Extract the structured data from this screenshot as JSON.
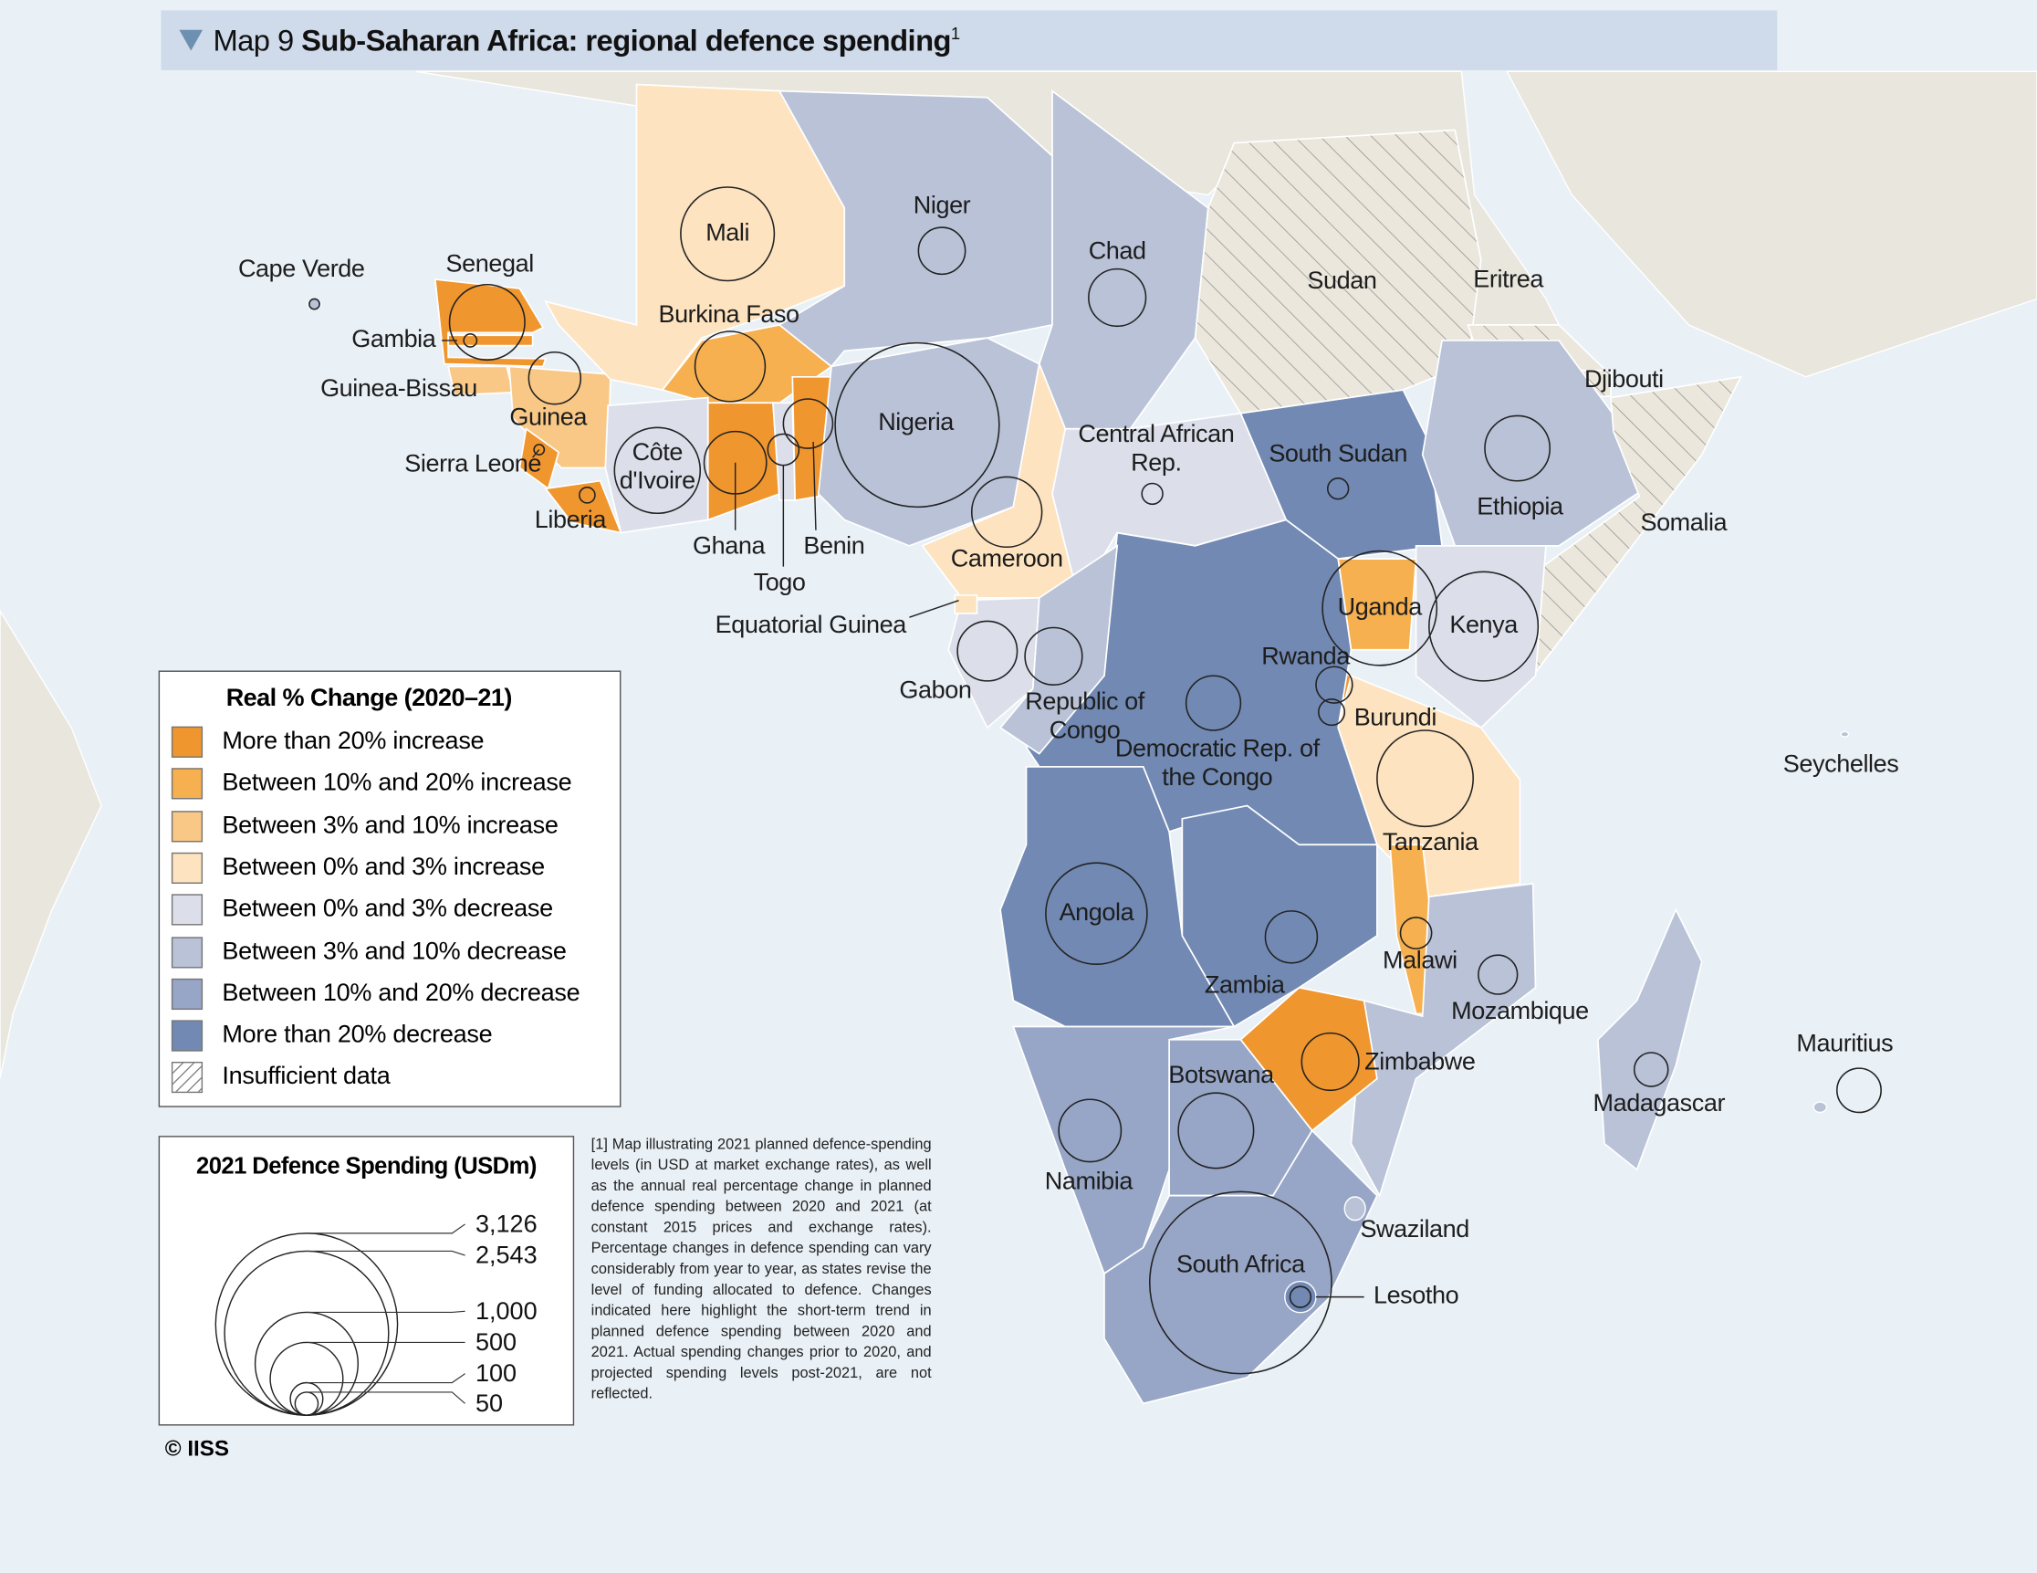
{
  "header": {
    "prefix": "Map 9",
    "title": "Sub-Saharan Africa: regional defence spending",
    "note": "1"
  },
  "countries": [
    {
      "name": "Cape Verde",
      "category": 5,
      "spending": 10
    },
    {
      "name": "Senegal",
      "category": 0,
      "spending": 536
    },
    {
      "name": "Gambia",
      "category": 0,
      "spending": 16
    },
    {
      "name": "Guinea-Bissau",
      "category": 2,
      "spending": null
    },
    {
      "name": "Guinea",
      "category": 2,
      "spending": 255
    },
    {
      "name": "Sierra Leone",
      "category": 0,
      "spending": 10
    },
    {
      "name": "Liberia",
      "category": 0,
      "spending": 23
    },
    {
      "name": "Mali",
      "category": 3,
      "spending": 827
    },
    {
      "name": "Burkina Faso",
      "category": 1,
      "spending": 465
    },
    {
      "name": "Côte d'Ivoire",
      "category": 4,
      "spending": 695
    },
    {
      "name": "Ghana",
      "category": 0,
      "spending": 367
    },
    {
      "name": "Togo",
      "category": 4,
      "spending": 92
    },
    {
      "name": "Benin",
      "category": 0,
      "spending": 230
    },
    {
      "name": "Nigeria",
      "category": 5,
      "spending": 2543
    },
    {
      "name": "Niger",
      "category": 5,
      "spending": 207
    },
    {
      "name": "Chad",
      "category": 5,
      "spending": 309
    },
    {
      "name": "Cameroon",
      "category": 3,
      "spending": 465
    },
    {
      "name": "Central African Rep.",
      "category": 4,
      "spending": 41
    },
    {
      "name": "South Sudan",
      "category": 7,
      "spending": 41
    },
    {
      "name": "Sudan",
      "category": 8,
      "spending": null
    },
    {
      "name": "Eritrea",
      "category": 8,
      "spending": null
    },
    {
      "name": "Djibouti",
      "category": 8,
      "spending": null
    },
    {
      "name": "Ethiopia",
      "category": 5,
      "spending": 400
    },
    {
      "name": "Somalia",
      "category": 8,
      "spending": null
    },
    {
      "name": "Kenya",
      "category": 4,
      "spending": 1125
    },
    {
      "name": "Uganda",
      "category": 1,
      "spending": 1235
    },
    {
      "name": "Rwanda",
      "category": 0,
      "spending": 125
    },
    {
      "name": "Burundi",
      "category": 3,
      "spending": 64
    },
    {
      "name": "Tanzania",
      "category": 3,
      "spending": 873
    },
    {
      "name": "Democratic Rep. of the Congo",
      "category": 7,
      "spending": 281
    },
    {
      "name": "Republic of Congo",
      "category": 5,
      "spending": 309
    },
    {
      "name": "Gabon",
      "category": 4,
      "spending": 337
    },
    {
      "name": "Equatorial Guinea",
      "category": 3,
      "spending": null
    },
    {
      "name": "Angola",
      "category": 7,
      "spending": 970
    },
    {
      "name": "Zambia",
      "category": 7,
      "spending": 255
    },
    {
      "name": "Malawi",
      "category": 1,
      "spending": 92
    },
    {
      "name": "Mozambique",
      "category": 5,
      "spending": 144
    },
    {
      "name": "Zimbabwe",
      "category": 0,
      "spending": 309
    },
    {
      "name": "Botswana",
      "category": 6,
      "spending": 536
    },
    {
      "name": "Namibia",
      "category": 6,
      "spending": 367
    },
    {
      "name": "South Africa",
      "category": 6,
      "spending": 3126
    },
    {
      "name": "Lesotho",
      "category": 7,
      "spending": 41
    },
    {
      "name": "Swaziland",
      "category": 5,
      "spending": null
    },
    {
      "name": "Madagascar",
      "category": 5,
      "spending": 108
    },
    {
      "name": "Mauritius",
      "category": 5,
      "spending": 184
    },
    {
      "name": "Seychelles",
      "category": 5,
      "spending": null
    }
  ],
  "legend": {
    "title": "Real % Change (2020–21)",
    "items": [
      {
        "label": "More than 20% increase",
        "color": "#f0962e"
      },
      {
        "label": "Between 10% and 20% increase",
        "color": "#f6b04f"
      },
      {
        "label": "Between 3% and 10% increase",
        "color": "#f9c886"
      },
      {
        "label": "Between 0% and 3% increase",
        "color": "#fde3bf"
      },
      {
        "label": "Between 0% and 3% decrease",
        "color": "#dcdfea"
      },
      {
        "label": "Between 3% and 10% decrease",
        "color": "#b9c2d7"
      },
      {
        "label": "Between 10% and 20% decrease",
        "color": "#97a6c6"
      },
      {
        "label": "More than 20% decrease",
        "color": "#7189b3"
      },
      {
        "label": "Insufficient data",
        "color": "#ffffff",
        "hatch": true
      }
    ]
  },
  "size_legend": {
    "title": "2021 Defence Spending (USDm)",
    "values": [
      {
        "value": 3126,
        "label": "3,126"
      },
      {
        "value": 2543,
        "label": "2,543"
      },
      {
        "value": 1000,
        "label": "1,000"
      },
      500,
      100,
      50
    ]
  },
  "footnote": "[1] Map illustrating 2021 planned defence-spending levels (in USD at market exchange rates), as well as the annual real percentage change in planned defence spending between 2020 and 2021 (at constant 2015 prices and exchange rates). Percentage changes in defence spending can vary considerably from year to year, as states revise the level of funding allocated to defence. Changes indicated here highlight the short-term trend in planned defence spending between 2020 and 2021. Actual spending changes prior to 2020, and projected spending levels post-2021, are not reflected.",
  "copyright": "© IISS"
}
